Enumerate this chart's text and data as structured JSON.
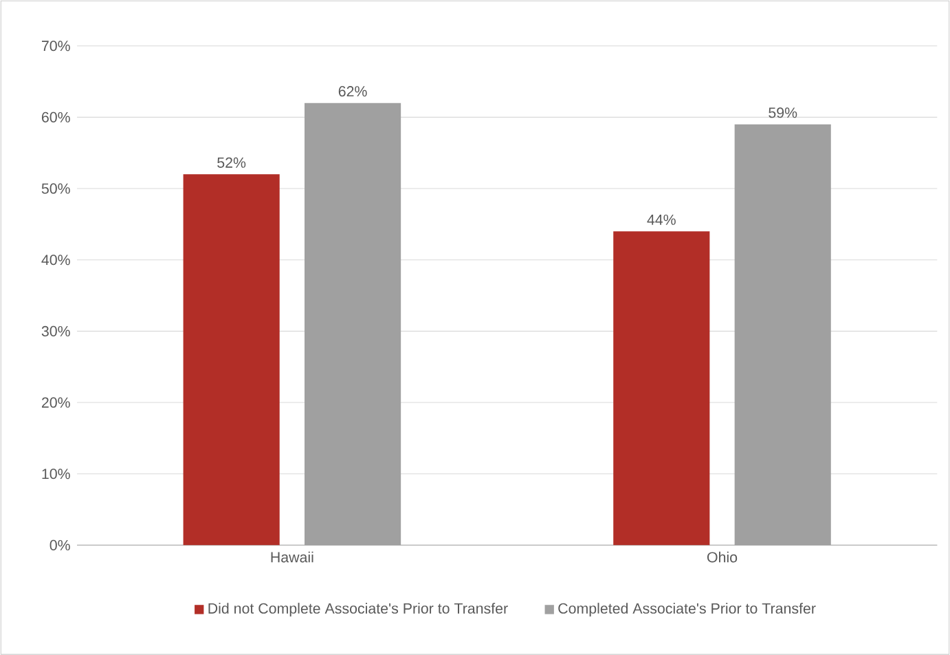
{
  "chart_data": {
    "type": "bar",
    "categories": [
      "Hawaii",
      "Ohio"
    ],
    "series": [
      {
        "name": "Did not Complete Associate's Prior to Transfer",
        "color": "#b22e27",
        "values": [
          52,
          44
        ],
        "value_labels": [
          "52%",
          "44%"
        ]
      },
      {
        "name": "Completed Associate's Prior to Transfer",
        "color": "#a0a0a0",
        "values": [
          62,
          59
        ],
        "value_labels": [
          "62%",
          "59%"
        ]
      }
    ],
    "ylim": [
      0,
      70
    ],
    "yticks": [
      {
        "value": 0,
        "label": "0%"
      },
      {
        "value": 10,
        "label": "10%"
      },
      {
        "value": 20,
        "label": "20%"
      },
      {
        "value": 30,
        "label": "30%"
      },
      {
        "value": 40,
        "label": "40%"
      },
      {
        "value": 50,
        "label": "50%"
      },
      {
        "value": 60,
        "label": "60%"
      },
      {
        "value": 70,
        "label": "70%"
      }
    ],
    "grid": "y",
    "legend": "bottom"
  }
}
